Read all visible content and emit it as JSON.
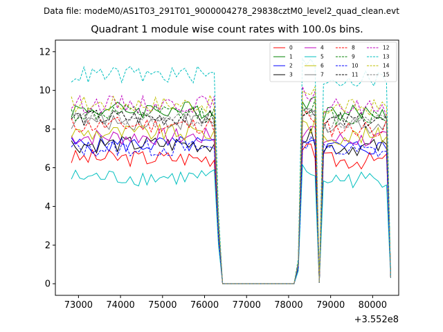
{
  "figure": {
    "suptitle": "Data file: modeM0/AS1T03_291T01_9000004278_29838cztM0_level2_quad_clean.evt",
    "title": "Quadrant 1 module wise count rates with 100.0s bins.",
    "offset_label": "+3.552e8"
  },
  "chart_data": {
    "type": "line",
    "title": "Quadrant 1 module wise count rates with 100.0s bins.",
    "xlabel": "",
    "ylabel": "",
    "x_offset": 355200000,
    "xlim": [
      72450,
      80620
    ],
    "ylim": [
      -0.6,
      12.6
    ],
    "xticks": [
      73000,
      74000,
      75000,
      76000,
      77000,
      78000,
      79000,
      80000
    ],
    "xtick_labels": [
      "73000",
      "74000",
      "75000",
      "76000",
      "77000",
      "78000",
      "79000",
      "80000"
    ],
    "yticks": [
      0,
      2,
      4,
      6,
      8,
      10,
      12
    ],
    "ytick_labels": [
      "0",
      "2",
      "4",
      "6",
      "8",
      "10",
      "12"
    ],
    "grid": false,
    "legend_position": "top-right",
    "series": [
      {
        "name": "0",
        "color": "#ff0000",
        "dashed": false,
        "base": 6.5
      },
      {
        "name": "1",
        "color": "#008000",
        "dashed": false,
        "base": 9.0
      },
      {
        "name": "2",
        "color": "#0000ff",
        "dashed": false,
        "base": 7.2
      },
      {
        "name": "3",
        "color": "#000000",
        "dashed": false,
        "base": 7.2
      },
      {
        "name": "4",
        "color": "#bf00bf",
        "dashed": false,
        "base": 7.6
      },
      {
        "name": "5",
        "color": "#00bfbf",
        "dashed": false,
        "base": 5.5
      },
      {
        "name": "6",
        "color": "#bfbf00",
        "dashed": false,
        "base": 7.8
      },
      {
        "name": "7",
        "color": "#808080",
        "dashed": false,
        "base": 8.4
      },
      {
        "name": "8",
        "color": "#ff0000",
        "dashed": true,
        "base": 8.2
      },
      {
        "name": "9",
        "color": "#008000",
        "dashed": true,
        "base": 8.8
      },
      {
        "name": "10",
        "color": "#0000ff",
        "dashed": true,
        "base": 7.0
      },
      {
        "name": "11",
        "color": "#000000",
        "dashed": true,
        "base": 8.6
      },
      {
        "name": "12",
        "color": "#bf00bf",
        "dashed": true,
        "base": 9.3
      },
      {
        "name": "13",
        "color": "#00bfbf",
        "dashed": true,
        "base": 10.8
      },
      {
        "name": "14",
        "color": "#bfbf00",
        "dashed": true,
        "base": 9.3
      },
      {
        "name": "15",
        "color": "#808080",
        "dashed": true,
        "base": 8.5
      }
    ]
  }
}
